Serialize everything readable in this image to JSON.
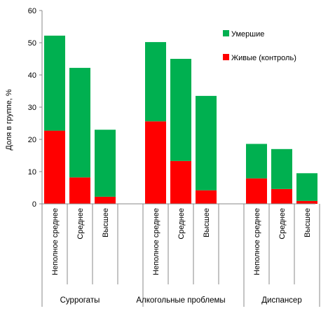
{
  "chart_data": {
    "type": "bar",
    "stacked": true,
    "ylabel": "Доля в группе, %",
    "ylim": [
      0,
      60
    ],
    "yticks": [
      0,
      10,
      20,
      30,
      40,
      50,
      60
    ],
    "grid": false,
    "legend_position": "top-right",
    "groups": [
      {
        "name": "Суррогаты",
        "categories": [
          "Неполное среднее",
          "Среднее",
          "Высшее"
        ]
      },
      {
        "name": "Алкогольные проблемы",
        "categories": [
          "Неполное среднее",
          "Среднее",
          "Высшее"
        ]
      },
      {
        "name": "Диспансер",
        "categories": [
          "Неполное среднее",
          "Среднее",
          "Высшее"
        ]
      }
    ],
    "series": [
      {
        "name": "Живые (контроль)",
        "color": "#ff0000",
        "values": [
          22.7,
          8.2,
          2.2,
          25.6,
          13.3,
          4.2,
          7.9,
          4.6,
          0.9
        ]
      },
      {
        "name": "Умершие",
        "color": "#00b050",
        "values": [
          29.5,
          34.0,
          20.8,
          24.6,
          31.7,
          29.3,
          10.7,
          12.4,
          8.6
        ]
      }
    ]
  }
}
